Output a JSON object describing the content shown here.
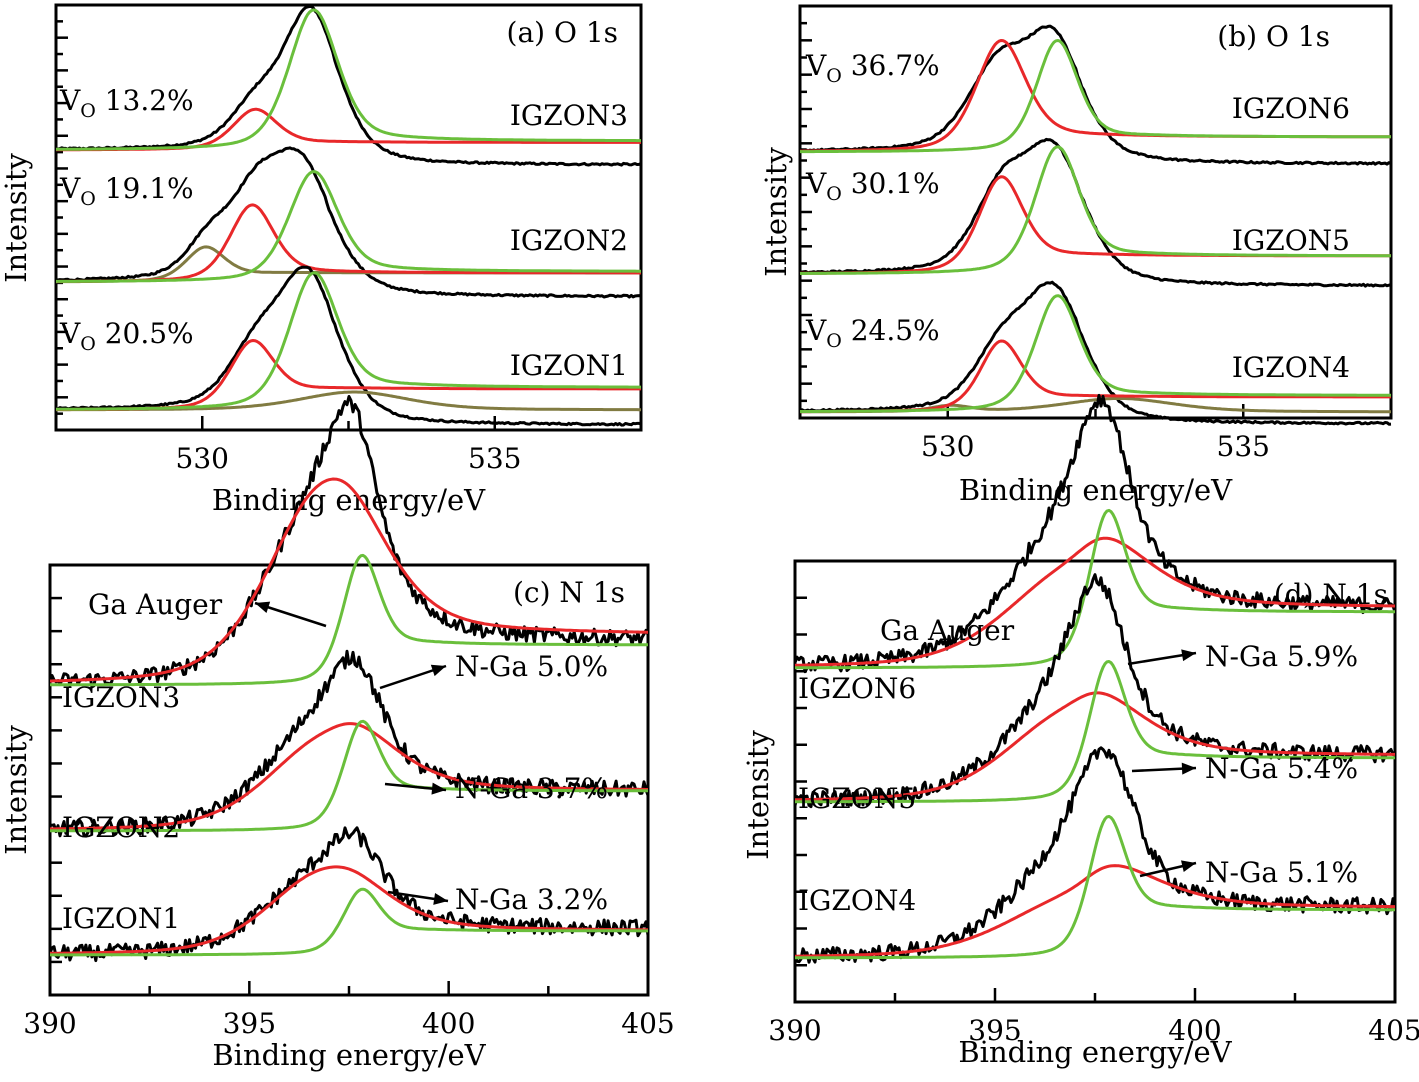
{
  "figure": {
    "colors": {
      "measured": "#000000",
      "vo_component": "#e8282a",
      "lattice_component": "#6abf3c",
      "extra_component": "#817b42",
      "ga_auger": "#e8282a",
      "n_ga": "#6abf3c"
    }
  },
  "chart_data": [
    {
      "id": "a",
      "type": "line",
      "title": "(a) O 1s",
      "xlabel": "Binding energy/eV",
      "ylabel": "Intensity",
      "xlim": [
        527.5,
        537.5
      ],
      "xticks": [
        530,
        535
      ],
      "xtick_labels": [
        "530",
        "535"
      ],
      "ylim": [
        0,
        3.0
      ],
      "grid": false,
      "series": [
        {
          "name": "IGZON3",
          "offset": 2.0,
          "label": "IGZON3",
          "vo_label": "V",
          "vo_sub": "O",
          "vo_value": "13.2%",
          "components": [
            {
              "role": "measured",
              "type": "envelope",
              "peaks": [
                [
                  530.9,
                  0.26,
                  0.5
                ],
                [
                  531.85,
                  0.92,
                  0.55
                ]
              ],
              "baseline_left": 0.0,
              "baseline_right": -0.02
            },
            {
              "role": "vo_component",
              "peaks": [
                [
                  530.9,
                  0.26,
                  0.45
                ]
              ],
              "tail": 0.05
            },
            {
              "role": "lattice_component",
              "peaks": [
                [
                  531.9,
                  0.92,
                  0.5
                ]
              ],
              "tail": 0.06
            }
          ]
        },
        {
          "name": "IGZON2",
          "offset": 1.0,
          "label": "IGZON2",
          "vo_label": "V",
          "vo_sub": "O",
          "vo_value": "19.1%",
          "components": [
            {
              "role": "measured",
              "type": "envelope",
              "peaks": [
                [
                  530.1,
                  0.22,
                  0.45
                ],
                [
                  530.9,
                  0.5,
                  0.55
                ],
                [
                  531.7,
                  0.72,
                  0.6
                ]
              ],
              "baseline_left": 0.0,
              "baseline_right": -0.02
            },
            {
              "role": "extra_component",
              "peaks": [
                [
                  530.05,
                  0.22,
                  0.4
                ]
              ],
              "tail": 0.06
            },
            {
              "role": "vo_component",
              "peaks": [
                [
                  530.85,
                  0.5,
                  0.45
                ]
              ],
              "tail": 0.06
            },
            {
              "role": "lattice_component",
              "peaks": [
                [
                  531.9,
                  0.72,
                  0.5
                ]
              ],
              "tail": 0.07
            }
          ]
        },
        {
          "name": "IGZON1",
          "offset": 0.0,
          "label": "IGZON1",
          "vo_label": "V",
          "vo_sub": "O",
          "vo_value": "20.5%",
          "components": [
            {
              "role": "measured",
              "type": "envelope",
              "peaks": [
                [
                  530.9,
                  0.35,
                  0.55
                ],
                [
                  531.8,
                  0.88,
                  0.6
                ]
              ],
              "baseline_left": 0.0,
              "baseline_right": -0.02
            },
            {
              "role": "extra_component",
              "peaks": [
                [
                  532.6,
                  0.12,
                  1.1
                ]
              ],
              "tail": 0.0
            },
            {
              "role": "vo_component",
              "peaks": [
                [
                  530.85,
                  0.43,
                  0.45
                ]
              ],
              "tail": 0.14
            },
            {
              "role": "lattice_component",
              "peaks": [
                [
                  531.9,
                  0.88,
                  0.5
                ]
              ],
              "tail": 0.15
            }
          ]
        }
      ]
    },
    {
      "id": "b",
      "type": "line",
      "title": "(b) O 1s",
      "xlabel": "Binding energy/eV",
      "ylabel": "Intensity",
      "xlim": [
        527.5,
        537.5
      ],
      "xticks": [
        530,
        535
      ],
      "xtick_labels": [
        "530",
        "535"
      ],
      "ylim": [
        0,
        3.0
      ],
      "grid": false,
      "series": [
        {
          "name": "IGZON6",
          "offset": 2.0,
          "label": "IGZON6",
          "vo_label": "V",
          "vo_sub": "O",
          "vo_value": "36.7%",
          "components": [
            {
              "role": "measured",
              "type": "envelope",
              "peaks": [
                [
                  530.85,
                  0.55,
                  0.6
                ],
                [
                  531.8,
                  0.7,
                  0.55
                ]
              ],
              "baseline_left": 0.0,
              "baseline_right": 0.0
            },
            {
              "role": "vo_component",
              "peaks": [
                [
                  530.9,
                  0.72,
                  0.5
                ]
              ],
              "tail": 0.1
            },
            {
              "role": "lattice_component",
              "peaks": [
                [
                  531.85,
                  0.72,
                  0.42
                ]
              ],
              "tail": 0.1
            }
          ]
        },
        {
          "name": "IGZON5",
          "offset": 1.0,
          "label": "IGZON5",
          "vo_label": "V",
          "vo_sub": "O",
          "vo_value": "30.1%",
          "components": [
            {
              "role": "measured",
              "type": "envelope",
              "peaks": [
                [
                  530.9,
                  0.5,
                  0.55
                ],
                [
                  531.8,
                  0.78,
                  0.6
                ]
              ],
              "baseline_left": 0.0,
              "baseline_right": 0.0
            },
            {
              "role": "vo_component",
              "peaks": [
                [
                  530.9,
                  0.62,
                  0.45
                ]
              ],
              "tail": 0.12
            },
            {
              "role": "lattice_component",
              "peaks": [
                [
                  531.85,
                  0.82,
                  0.45
                ]
              ],
              "tail": 0.12
            }
          ]
        },
        {
          "name": "IGZON4",
          "offset": 0.0,
          "label": "IGZON4",
          "vo_label": "V",
          "vo_sub": "O",
          "vo_value": "24.5%",
          "components": [
            {
              "role": "measured",
              "type": "envelope",
              "peaks": [
                [
                  530.9,
                  0.38,
                  0.55
                ],
                [
                  531.8,
                  0.78,
                  0.6
                ]
              ],
              "baseline_left": 0.0,
              "baseline_right": 0.0
            },
            {
              "role": "extra_component",
              "peaks": [
                [
                  530.05,
                  0.04,
                  0.4
                ],
                [
                  532.9,
                  0.09,
                  1.1
                ]
              ],
              "tail": 0.0
            },
            {
              "role": "vo_component",
              "peaks": [
                [
                  530.9,
                  0.45,
                  0.42
                ]
              ],
              "tail": 0.1
            },
            {
              "role": "lattice_component",
              "peaks": [
                [
                  531.85,
                  0.75,
                  0.45
                ]
              ],
              "tail": 0.11
            }
          ]
        }
      ]
    },
    {
      "id": "c",
      "type": "line",
      "title": "(c) N 1s",
      "xlabel": "Binding energy/eV",
      "ylabel": "Intensity",
      "xlim": [
        390,
        405
      ],
      "xticks": [
        390,
        395,
        400,
        405
      ],
      "xtick_labels": [
        "390",
        "395",
        "400",
        "405"
      ],
      "ylim": [
        0,
        3.0
      ],
      "grid": false,
      "annotations": [
        {
          "text": "Ga Auger",
          "series": "IGZON3"
        }
      ],
      "series": [
        {
          "name": "IGZON3",
          "offset": 1.35,
          "label": "IGZON3",
          "nga_label": "N-Ga 5.0%",
          "components": [
            {
              "role": "measured",
              "type": "noisy",
              "peaks": [
                [
                  396.8,
                  0.82,
                  1.6
                ],
                [
                  397.6,
                  0.55,
                  0.65
                ]
              ],
              "baseline": 0.22
            },
            {
              "role": "ga_auger",
              "peaks": [
                [
                  396.8,
                  0.95,
                  1.6
                ]
              ],
              "tail": 0.25
            },
            {
              "role": "n_ga",
              "peaks": [
                [
                  397.8,
                  0.6,
                  0.55
                ]
              ],
              "tail": 0.2
            }
          ]
        },
        {
          "name": "IGZON2",
          "offset": 0.62,
          "label": "IGZON2",
          "nga_label": "N-Ga 3.7%",
          "components": [
            {
              "role": "measured",
              "type": "noisy",
              "peaks": [
                [
                  396.8,
                  0.45,
                  1.6
                ],
                [
                  397.7,
                  0.35,
                  0.7
                ]
              ],
              "baseline": 0.2
            },
            {
              "role": "ga_auger",
              "peaks": [
                [
                  396.9,
                  0.45,
                  1.7
                ]
              ],
              "tail": 0.2
            },
            {
              "role": "n_ga",
              "peaks": [
                [
                  397.8,
                  0.5,
                  0.55
                ]
              ],
              "tail": 0.2
            }
          ]
        },
        {
          "name": "IGZON1",
          "offset": 0.0,
          "label": "IGZON1",
          "nga_label": "N-Ga 3.2%",
          "components": [
            {
              "role": "measured",
              "type": "noisy",
              "peaks": [
                [
                  396.8,
                  0.35,
                  1.6
                ],
                [
                  397.7,
                  0.22,
                  0.7
                ]
              ],
              "baseline": 0.13
            },
            {
              "role": "ga_auger",
              "peaks": [
                [
                  396.8,
                  0.4,
                  1.6
                ]
              ],
              "tail": 0.12
            },
            {
              "role": "n_ga",
              "peaks": [
                [
                  397.8,
                  0.3,
                  0.55
                ]
              ],
              "tail": 0.12
            }
          ]
        }
      ]
    },
    {
      "id": "d",
      "type": "line",
      "title": "(d)  N 1s",
      "xlabel": "Binding energy/eV",
      "ylabel": "Intensity",
      "xlim": [
        390,
        405
      ],
      "xticks": [
        390,
        395,
        400,
        405
      ],
      "xtick_labels": [
        "390",
        "395",
        "400",
        "405"
      ],
      "ylim": [
        0,
        3.0
      ],
      "grid": false,
      "annotations": [
        {
          "text": "Ga Auger",
          "series": "IGZON6"
        }
      ],
      "series": [
        {
          "name": "IGZON6",
          "offset": 1.45,
          "label": "IGZON6",
          "nga_label": "N-Ga 5.9%",
          "components": [
            {
              "role": "measured",
              "type": "noisy",
              "peaks": [
                [
                  396.8,
                  0.55,
                  1.8
                ],
                [
                  397.7,
                  0.65,
                  0.75
                ]
              ],
              "baseline": 0.3
            },
            {
              "role": "ga_auger",
              "peaks": [
                [
                  396.9,
                  0.48,
                  1.9
                ]
              ],
              "tail": 0.3
            },
            {
              "role": "n_ga",
              "peaks": [
                [
                  397.8,
                  0.72,
                  0.55
                ]
              ],
              "tail": 0.28
            }
          ]
        },
        {
          "name": "IGZON5",
          "offset": 0.78,
          "label": "IGZON5",
          "nga_label": "N-Ga 5.4%",
          "components": [
            {
              "role": "measured",
              "type": "noisy",
              "peaks": [
                [
                  396.8,
                  0.45,
                  1.7
                ],
                [
                  397.6,
                  0.55,
                  0.75
                ]
              ],
              "baseline": 0.23
            },
            {
              "role": "ga_auger",
              "peaks": [
                [
                  396.8,
                  0.43,
                  1.8
                ]
              ],
              "tail": 0.23
            },
            {
              "role": "n_ga",
              "peaks": [
                [
                  397.8,
                  0.65,
                  0.55
                ]
              ],
              "tail": 0.22
            }
          ]
        },
        {
          "name": "IGZON4",
          "offset": 0.0,
          "label": "IGZON4",
          "nga_label": "N-Ga 5.1%",
          "components": [
            {
              "role": "measured",
              "type": "noisy",
              "peaks": [
                [
                  396.8,
                  0.38,
                  1.7
                ],
                [
                  397.8,
                  0.55,
                  0.8
                ]
              ],
              "baseline": 0.25
            },
            {
              "role": "ga_auger",
              "peaks": [
                [
                  397.0,
                  0.3,
                  2.0
                ]
              ],
              "tail": 0.25
            },
            {
              "role": "n_ga",
              "peaks": [
                [
                  397.8,
                  0.65,
                  0.55
                ]
              ],
              "tail": 0.24
            }
          ]
        }
      ]
    }
  ]
}
